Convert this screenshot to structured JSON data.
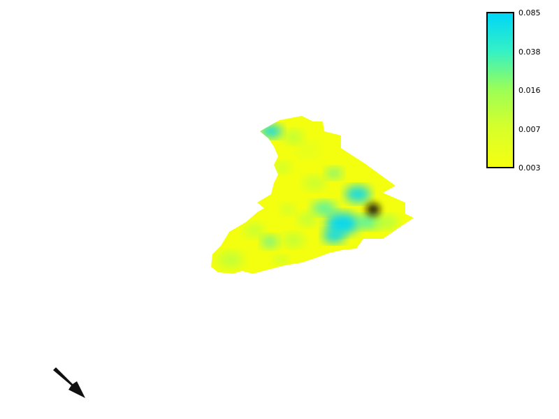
{
  "colors": {
    "low": "#f4ff10",
    "mid_low": "#d8ff2a",
    "mid": "#9cff55",
    "mid_high": "#35f1c4",
    "high": "#00d6f8",
    "hotspot": "#111111",
    "legend_border": "#000000",
    "arrow": "#111111"
  },
  "legend": {
    "ticks": [
      "0.085",
      "0.038",
      "0.016",
      "0.007",
      "0.003"
    ]
  },
  "icons": {
    "north_arrow": "north-arrow-icon"
  }
}
